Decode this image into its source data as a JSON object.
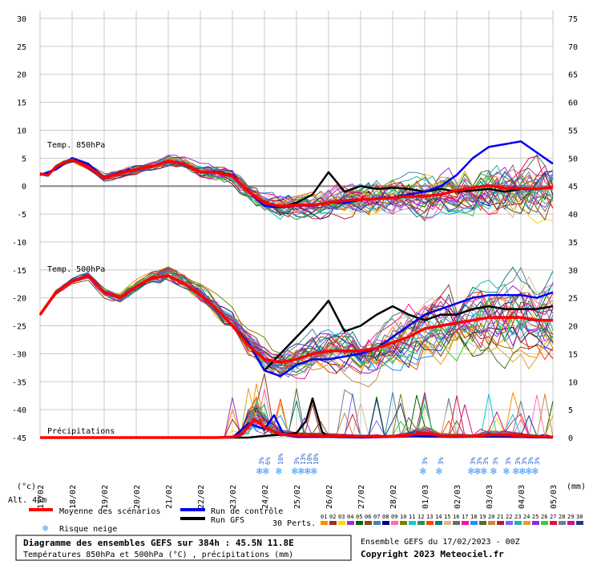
{
  "chart_data": {
    "type": "line",
    "left_ticks": [
      30,
      25,
      20,
      15,
      10,
      5,
      0,
      -5,
      -10,
      -15,
      -20,
      -25,
      -30,
      -35,
      -40,
      -45
    ],
    "right_ticks": [
      75,
      70,
      65,
      60,
      55,
      50,
      45,
      40,
      35,
      30,
      25,
      20,
      15,
      10,
      5,
      0
    ],
    "left_unit": "(°c)",
    "right_unit": "(mm)",
    "date_labels": [
      "17/02",
      "18/02",
      "19/02",
      "20/02",
      "21/02",
      "22/02",
      "23/02",
      "24/02",
      "25/02",
      "26/02",
      "27/02",
      "28/02",
      "01/03",
      "02/03",
      "03/03",
      "04/03",
      "05/03"
    ],
    "t850_label": "Temp. 850hPa",
    "t500_label": "Temp. 500hPa",
    "precip_label": "Précipitations",
    "alt_label": "Alt. 45m",
    "snow_risk": [
      {
        "x": 6.9,
        "pct": "3%"
      },
      {
        "x": 7.1,
        "pct": "6%"
      },
      {
        "x": 7.5,
        "pct": "10%"
      },
      {
        "x": 8.0,
        "pct": "3%"
      },
      {
        "x": 8.2,
        "pct": "13%"
      },
      {
        "x": 8.4,
        "pct": "10%"
      },
      {
        "x": 8.6,
        "pct": "10%"
      },
      {
        "x": 12.0,
        "pct": "3%"
      },
      {
        "x": 12.5,
        "pct": "3%"
      },
      {
        "x": 13.5,
        "pct": "3%"
      },
      {
        "x": 13.7,
        "pct": "3%"
      },
      {
        "x": 13.9,
        "pct": "3%"
      },
      {
        "x": 14.2,
        "pct": "3%"
      },
      {
        "x": 14.6,
        "pct": "3%"
      },
      {
        "x": 14.9,
        "pct": "3%"
      },
      {
        "x": 15.1,
        "pct": "3%"
      },
      {
        "x": 15.3,
        "pct": "3%"
      },
      {
        "x": 15.5,
        "pct": "3%"
      }
    ],
    "series": [
      {
        "name": "Moyenne des scénarios",
        "color": "#ff0000",
        "t850_x": [
          0,
          0.25,
          0.5,
          0.75,
          1,
          1.5,
          2,
          2.5,
          3,
          3.5,
          4,
          4.5,
          5,
          5.5,
          6,
          6.5,
          7,
          7.5,
          8,
          8.5,
          9,
          9.5,
          10,
          10.5,
          11,
          11.5,
          12,
          12.5,
          13,
          13.5,
          14,
          14.5,
          15,
          15.5,
          16
        ],
        "t850": [
          2.2,
          2.0,
          3.5,
          4.2,
          4.7,
          3.5,
          1.5,
          2.3,
          3.0,
          3.5,
          4.5,
          4.0,
          2.5,
          2.4,
          1.8,
          -1.0,
          -3.0,
          -3.6,
          -3.4,
          -3.4,
          -3.0,
          -2.6,
          -2.4,
          -2.3,
          -2.1,
          -1.8,
          -1.8,
          -1.5,
          -0.8,
          -0.3,
          0.1,
          -0.4,
          -0.4,
          -0.5,
          -0.2
        ],
        "t500_x": [
          0,
          0.5,
          1,
          1.5,
          2,
          2.5,
          3,
          3.5,
          4,
          4.5,
          5,
          5.5,
          6,
          6.5,
          7,
          7.5,
          8,
          8.5,
          9,
          9.5,
          10,
          10.5,
          11,
          11.5,
          12,
          12.5,
          13,
          13.5,
          14,
          14.5,
          15,
          15.5,
          16
        ],
        "t500": [
          -23,
          -19,
          -17,
          -16,
          -19,
          -20,
          -18,
          -16.5,
          -16,
          -17.5,
          -19.5,
          -22,
          -25,
          -28.5,
          -31,
          -31.5,
          -31,
          -30,
          -29.5,
          -29.5,
          -29.5,
          -29,
          -28,
          -27,
          -25.5,
          -25,
          -24.5,
          -24,
          -23.5,
          -23.5,
          -23.5,
          -24,
          -24
        ],
        "precip_x": [
          0,
          5.5,
          6.0,
          6.3,
          6.5,
          6.7,
          7.0,
          7.5,
          8,
          9,
          10,
          11,
          11.5,
          12,
          12.5,
          13,
          13.5,
          14,
          14.5,
          15,
          15.5,
          16
        ],
        "precip": [
          0,
          0,
          0.1,
          0.6,
          2.0,
          3.2,
          1.8,
          0.6,
          0.4,
          0.3,
          0.2,
          0.2,
          0.4,
          0.9,
          0.3,
          0.3,
          0.2,
          0.5,
          0.5,
          0.3,
          0.2,
          0.1
        ]
      },
      {
        "name": "Run de contrôle",
        "color": "#0000ee",
        "t850_x": [
          0,
          0.5,
          1,
          1.5,
          2,
          2.5,
          3,
          3.5,
          4,
          4.5,
          5,
          5.5,
          6,
          6.5,
          7,
          7.5,
          8,
          8.5,
          9,
          9.5,
          10,
          10.5,
          11,
          11.5,
          12,
          12.5,
          13,
          13.5,
          14,
          14.5,
          15,
          15.5,
          16
        ],
        "t850": [
          2,
          3,
          5,
          4,
          1.5,
          2.5,
          3,
          3.5,
          4.5,
          4,
          2.5,
          2.5,
          2,
          -1,
          -3.5,
          -3.8,
          -3.5,
          -3.5,
          -3,
          -3,
          -2.5,
          -2.2,
          -2,
          -1.5,
          -1,
          0,
          2,
          5,
          7,
          7.5,
          8,
          6,
          4
        ],
        "t500_x": [
          0,
          0.5,
          1,
          1.5,
          2,
          2.5,
          3,
          3.5,
          4,
          4.5,
          5,
          5.5,
          6,
          6.5,
          7,
          7.5,
          8,
          8.5,
          9,
          9.5,
          10,
          10.5,
          11,
          11.5,
          12,
          12.5,
          13,
          13.5,
          14,
          14.5,
          15,
          15.5,
          16
        ],
        "t500": [
          -23,
          -19,
          -17,
          -16,
          -19,
          -20,
          -18,
          -16.5,
          -16,
          -17.5,
          -19.5,
          -22,
          -25,
          -28,
          -33,
          -34,
          -32,
          -31,
          -31,
          -30.5,
          -30,
          -29,
          -27,
          -25,
          -23,
          -22,
          -21,
          -20,
          -19.5,
          -19.5,
          -19.5,
          -20,
          -19
        ],
        "precip_x": [
          0,
          5.5,
          6.0,
          6.5,
          7,
          7.3,
          7.6,
          8,
          9,
          10,
          11,
          12,
          13,
          14,
          15,
          16
        ],
        "precip": [
          0,
          0,
          0,
          2.5,
          1.5,
          4.0,
          0.5,
          0.1,
          0.1,
          0,
          0.1,
          0.3,
          0.1,
          0.3,
          0.1,
          0
        ]
      },
      {
        "name": "Run GFS",
        "color": "#000000",
        "t850_x": [
          0,
          0.5,
          1,
          1.5,
          2,
          2.5,
          3,
          3.5,
          4,
          4.5,
          5,
          5.5,
          6,
          6.5,
          7,
          7.5,
          8,
          8.5,
          9,
          9.5,
          10,
          10.5,
          11,
          11.5,
          12,
          12.5,
          13,
          13.5,
          14,
          14.5,
          15,
          15.5,
          16
        ],
        "t850": [
          2,
          3,
          5,
          4,
          1.5,
          2.5,
          3,
          3.5,
          4.5,
          4,
          2.5,
          2.5,
          2,
          -1,
          -3.5,
          -3.8,
          -3,
          -1.5,
          2.5,
          -1,
          0,
          -0.5,
          -0.3,
          -0.5,
          -1,
          -0.5,
          -1,
          -0.8,
          -0.5,
          -1,
          -0.5,
          -0.5,
          -0.2
        ],
        "t500_x": [
          0,
          0.5,
          1,
          1.5,
          2,
          2.5,
          3,
          3.5,
          4,
          4.5,
          5,
          5.5,
          6,
          6.5,
          7,
          7.5,
          8,
          8.5,
          9,
          9.5,
          10,
          10.5,
          11,
          11.5,
          12,
          12.5,
          13,
          13.5,
          14,
          14.5,
          15,
          15.5,
          16
        ],
        "t500": [
          -23,
          -19,
          -17,
          -16,
          -19,
          -20,
          -18,
          -16.5,
          -16,
          -17.5,
          -19.5,
          -22,
          -25,
          -28,
          -33,
          -30,
          -27,
          -24,
          -20.5,
          -26,
          -25,
          -23,
          -21.5,
          -23,
          -24,
          -23,
          -23,
          -22,
          -21.5,
          -22,
          -22,
          -22,
          -21.5
        ],
        "precip_x": [
          0,
          6.5,
          7,
          7.5,
          8,
          8.3,
          8.5,
          8.8,
          9,
          10,
          11,
          12,
          13,
          14,
          15,
          16
        ],
        "precip": [
          0,
          0,
          0.3,
          0.5,
          0.8,
          3.0,
          7.0,
          1.0,
          0.2,
          0.1,
          0.3,
          0.2,
          0.1,
          0.2,
          0.1,
          0
        ]
      }
    ],
    "legend": {
      "mean_label": "Moyenne des scénarios",
      "control_label": "Run de contrôle",
      "gfs_label": "Run GFS",
      "snow_label": "Risque neige",
      "perts_label": "30 Perts."
    },
    "member_numbers": [
      "01",
      "02",
      "03",
      "04",
      "05",
      "06",
      "07",
      "08",
      "09",
      "10",
      "11",
      "12",
      "13",
      "14",
      "15",
      "16",
      "17",
      "18",
      "19",
      "20",
      "21",
      "22",
      "23",
      "24",
      "25",
      "26",
      "27",
      "28",
      "29",
      "30"
    ],
    "member_colors": [
      "#ff8c00",
      "#a52a2a",
      "#ffd700",
      "#9932cc",
      "#006400",
      "#8b4513",
      "#4682b4",
      "#000080",
      "#ff69b4",
      "#808000",
      "#00ced1",
      "#2e8b57",
      "#ff4500",
      "#008080",
      "#deb887",
      "#696969",
      "#ff1493",
      "#1e90ff",
      "#556b2f",
      "#cd853f",
      "#b22222",
      "#7b68ee",
      "#20b2aa",
      "#daa520",
      "#8a2be2",
      "#32cd32",
      "#dc143c",
      "#708090",
      "#c71585",
      "#1e3a8a"
    ]
  },
  "footer": {
    "title": "Diagramme des ensembles GEFS sur 384h : 45.5N 11.8E",
    "subtitle": "Températures 850hPa et 500hPa (°C) , précipitations (mm)",
    "run_info": "Ensemble GEFS du 17/02/2023 - 00Z",
    "copyright": "Copyright 2023 Meteociel.fr"
  }
}
